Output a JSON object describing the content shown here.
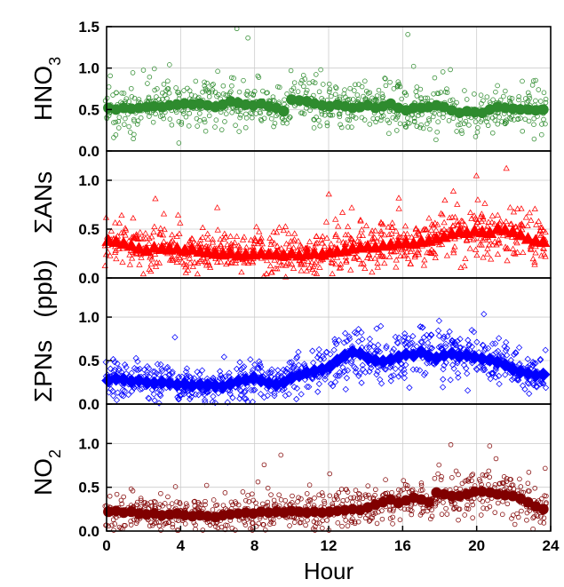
{
  "chart_data": {
    "type": "scatter",
    "xlabel": "Hour",
    "shared_ylabel": "(ppb)",
    "xlim": [
      0,
      24
    ],
    "x_ticks": [
      "0",
      "4",
      "8",
      "12",
      "16",
      "20",
      "24"
    ],
    "grid": true,
    "panels": [
      {
        "ylabel_main": "HNO",
        "ylabel_sub": "3",
        "ylim": [
          0,
          1.5
        ],
        "y_ticks": [
          "0.0",
          "0.5",
          "1.0",
          "1.5"
        ],
        "color": "#2e8b2e",
        "marker": "circle",
        "mean": [
          0.52,
          0.5,
          0.52,
          0.51,
          0.52,
          0.53,
          0.54,
          0.53,
          0.55,
          0.56,
          0.57,
          0.56,
          0.57,
          0.55,
          0.53,
          0.56,
          0.6,
          0.58,
          0.56,
          0.55,
          0.57,
          0.54,
          0.52,
          0.48,
          0.62,
          0.61,
          0.6,
          0.57,
          0.55,
          0.54,
          0.56,
          0.54,
          0.52,
          0.53,
          0.55,
          0.52,
          0.54,
          0.57,
          0.52,
          0.49,
          0.52,
          0.52,
          0.53,
          0.55,
          0.53,
          0.49,
          0.46,
          0.48,
          0.47,
          0.46,
          0.5,
          0.53,
          0.52,
          0.51,
          0.5,
          0.5,
          0.49,
          0.5
        ]
      },
      {
        "ylabel_main": "ΣANs",
        "ylabel_sub": "",
        "ylim": [
          0,
          1.3
        ],
        "y_ticks": [
          "0.0",
          "0.5",
          "1.0"
        ],
        "color": "#ff0000",
        "marker": "triangle",
        "mean": [
          0.38,
          0.37,
          0.35,
          0.33,
          0.3,
          0.28,
          0.31,
          0.3,
          0.29,
          0.3,
          0.28,
          0.29,
          0.27,
          0.26,
          0.25,
          0.24,
          0.25,
          0.23,
          0.24,
          0.24,
          0.25,
          0.24,
          0.24,
          0.23,
          0.25,
          0.23,
          0.24,
          0.25,
          0.24,
          0.26,
          0.27,
          0.28,
          0.3,
          0.31,
          0.32,
          0.31,
          0.33,
          0.34,
          0.35,
          0.36,
          0.35,
          0.37,
          0.38,
          0.4,
          0.42,
          0.45,
          0.47,
          0.46,
          0.48,
          0.47,
          0.46,
          0.5,
          0.49,
          0.47,
          0.44,
          0.4,
          0.38,
          0.37
        ]
      },
      {
        "ylabel_main": "ΣPNs",
        "ylabel_sub": "",
        "ylim": [
          0,
          1.45
        ],
        "y_ticks": [
          "0.0",
          "0.5",
          "1.0"
        ],
        "color": "#0000ff",
        "marker": "diamond",
        "mean": [
          0.27,
          0.29,
          0.28,
          0.26,
          0.27,
          0.25,
          0.24,
          0.25,
          0.24,
          0.22,
          0.23,
          0.21,
          0.22,
          0.22,
          0.21,
          0.2,
          0.23,
          0.26,
          0.28,
          0.3,
          0.27,
          0.24,
          0.22,
          0.25,
          0.3,
          0.33,
          0.36,
          0.38,
          0.4,
          0.43,
          0.5,
          0.56,
          0.6,
          0.58,
          0.53,
          0.5,
          0.49,
          0.51,
          0.54,
          0.57,
          0.56,
          0.6,
          0.55,
          0.53,
          0.56,
          0.58,
          0.55,
          0.56,
          0.54,
          0.52,
          0.51,
          0.48,
          0.45,
          0.4,
          0.37,
          0.35,
          0.33,
          0.34
        ]
      },
      {
        "ylabel_main": "NO",
        "ylabel_sub": "2",
        "ylim": [
          0,
          1.45
        ],
        "y_ticks": [
          "0.0",
          "0.5",
          "1.0"
        ],
        "color": "#800000",
        "marker": "circle",
        "mean": [
          0.22,
          0.23,
          0.21,
          0.22,
          0.2,
          0.19,
          0.2,
          0.18,
          0.19,
          0.2,
          0.18,
          0.17,
          0.18,
          0.17,
          0.16,
          0.18,
          0.19,
          0.2,
          0.21,
          0.2,
          0.22,
          0.21,
          0.22,
          0.21,
          0.23,
          0.22,
          0.21,
          0.22,
          0.21,
          0.22,
          0.23,
          0.24,
          0.25,
          0.24,
          0.27,
          0.3,
          0.33,
          0.36,
          0.32,
          0.35,
          0.38,
          0.36,
          0.33,
          0.44,
          0.42,
          0.4,
          0.4,
          0.42,
          0.45,
          0.45,
          0.44,
          0.42,
          0.41,
          0.4,
          0.37,
          0.33,
          0.28,
          0.25
        ]
      }
    ]
  }
}
